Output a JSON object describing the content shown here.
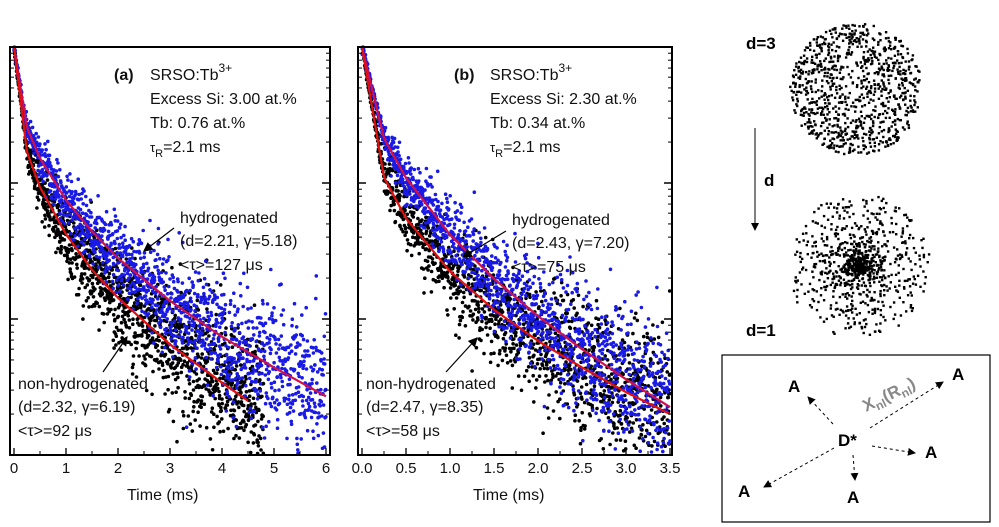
{
  "chart_data": [
    {
      "type": "scatter",
      "panel_label": "(a)",
      "xlabel": "Time (ms)",
      "xlim": [
        0,
        6
      ],
      "x_ticks": [
        "0",
        "1",
        "2",
        "3",
        "4",
        "5",
        "6"
      ],
      "y_scale": "log",
      "ylim": [
        0.001,
        1
      ],
      "y_tick_labels": "none",
      "info": {
        "line1": "SRSO:Tb",
        "line1_sup": "3+",
        "line2": "Excess Si: 3.00 at.%",
        "line3": "Tb: 0.76 at.%",
        "line4_sym": "τ",
        "line4_sub": "R",
        "line4_rest": "=2.1 ms"
      },
      "annotations": {
        "hydro": {
          "line1": "hydrogenated",
          "line2": "(d=2.21, γ=5.18)",
          "line3": "<τ>=127 μs"
        },
        "nonhydro": {
          "line1": "non-hydrogenated",
          "line2": "(d=2.32, γ=6.19)",
          "line3": "<τ>=92 μs"
        }
      },
      "series": [
        {
          "key": "hydrogenated",
          "color": "#1a1ae6",
          "fit_color": "#d0104a",
          "fit": {
            "t": [
              0,
              0.25,
              0.5,
              1,
              1.5,
              2,
              3,
              4,
              5,
              6
            ],
            "I": [
              1,
              0.255,
              0.152,
              0.075,
              0.044,
              0.028,
              0.0136,
              0.0074,
              0.0044,
              0.0027
            ]
          }
        },
        {
          "key": "non-hydrogenated",
          "color": "#000000",
          "fit_color": "#e01010",
          "fit": {
            "t": [
              0,
              0.25,
              0.5,
              1,
              1.5,
              2,
              3,
              4,
              4.5
            ],
            "I": [
              1,
              0.169,
              0.093,
              0.042,
              0.023,
              0.0143,
              0.0065,
              0.0034,
              0.0025
            ]
          }
        }
      ]
    },
    {
      "type": "scatter",
      "panel_label": "(b)",
      "xlabel": "Time (ms)",
      "xlim": [
        0,
        3.5
      ],
      "x_ticks": [
        "0.0",
        "0.5",
        "1.0",
        "1.5",
        "2.0",
        "2.5",
        "3.0",
        "3.5"
      ],
      "y_scale": "log",
      "ylim": [
        0.001,
        1
      ],
      "y_tick_labels": "none",
      "info": {
        "line1": "SRSO:Tb",
        "line1_sup": "3+",
        "line2": "Excess Si: 2.30 at.%",
        "line3": "Tb: 0.34 at.%",
        "line4_sym": "τ",
        "line4_sub": "R",
        "line4_rest": "=2.1 ms"
      },
      "annotations": {
        "hydro": {
          "line1": "hydrogenated",
          "line2": "(d=2.43, γ=7.20)",
          "line3": "<τ>=75 μs"
        },
        "nonhydro": {
          "line1": "non-hydrogenated",
          "line2": "(d=2.47, γ=8.35)",
          "line3": "<τ>=58 μs"
        }
      },
      "series": [
        {
          "key": "hydrogenated",
          "color": "#1a1ae6",
          "fit_color": "#d0104a",
          "fit": {
            "t": [
              0,
              0.25,
              0.5,
              1,
              1.5,
              2,
              2.5,
              3,
              3.5
            ],
            "I": [
              1,
              0.213,
              0.109,
              0.0417,
              0.0198,
              0.0105,
              0.006,
              0.0036,
              0.00225
            ]
          }
        },
        {
          "key": "non-hydrogenated",
          "color": "#000000",
          "fit_color": "#e01010",
          "fit": {
            "t": [
              0,
              0.25,
              0.5,
              1,
              1.5,
              2,
              2.5,
              3,
              3.5
            ],
            "I": [
              1,
              0.11,
              0.055,
              0.0224,
              0.0117,
              0.0069,
              0.0044,
              0.0029,
              0.002
            ]
          }
        }
      ]
    }
  ],
  "clusters": {
    "top_label": "d=3",
    "bottom_label": "d=1",
    "arrow_label": "d"
  },
  "diagram": {
    "donor": "D*",
    "acceptor": "A",
    "transfer_label": "X",
    "transfer_sub": "nl",
    "transfer_paren_open": "(R",
    "transfer_paren_sub": "nl",
    "transfer_paren_close": ")"
  }
}
